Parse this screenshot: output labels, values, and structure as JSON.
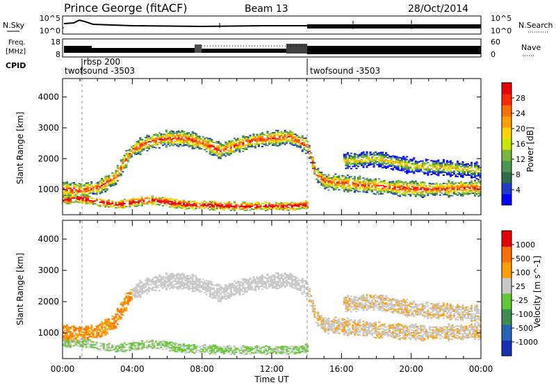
{
  "header": {
    "station": "Prince George (fitACF)",
    "beam": "Beam 13",
    "date": "28/Oct/2014"
  },
  "strips": {
    "nsky_label": "N.Sky",
    "nsearch_label": "N.Search",
    "freq_label_1": "Freq.",
    "freq_label_2": "[MHz]",
    "nave_label": "Nave",
    "cpid_label": "CPID",
    "nsky_ticks": [
      "10^5",
      "10^0"
    ],
    "freq_ticks": [
      "18",
      "8"
    ],
    "nave_ticks": [
      "60",
      "0"
    ],
    "cpid_entries": [
      {
        "time": 0.0,
        "label": "twofsound -3503",
        "marker": false
      },
      {
        "time": 1.15,
        "label": "rbsp 200",
        "marker": true
      },
      {
        "time": 14.1,
        "label": "twofsound -3503",
        "marker": true
      }
    ]
  },
  "axes": {
    "x_label": "Time UT",
    "x_ticks": [
      "00:00",
      "04:00",
      "08:00",
      "12:00",
      "16:00",
      "20:00",
      "00:00"
    ],
    "y_label": "Slant Range [km]",
    "y_ticks": [
      "1000",
      "2000",
      "3000",
      "4000"
    ]
  },
  "chart_data": [
    {
      "type": "heatmap",
      "title": "",
      "xlabel": "Time UT",
      "ylabel": "Slant Range [km]",
      "xlim": [
        0,
        24
      ],
      "ylim": [
        180,
        4600
      ],
      "colorbar": {
        "label": "Power [dB]",
        "ticks": [
          "28",
          "24",
          "20",
          "16",
          "12",
          "8",
          "4"
        ],
        "colors": [
          "#0000ff",
          "#1e3cc8",
          "#2d6e4b",
          "#4b9650",
          "#7db43c",
          "#c8e600",
          "#ffd200",
          "#ffa000",
          "#ff6e00",
          "#ff2800",
          "#e60000"
        ]
      },
      "echo_bands": [
        {
          "name": "main F-region",
          "points": [
            [
              0,
              1000
            ],
            [
              1,
              950
            ],
            [
              2,
              1050
            ],
            [
              3,
              1400
            ],
            [
              3.5,
              1900
            ],
            [
              4,
              2300
            ],
            [
              5,
              2550
            ],
            [
              6,
              2650
            ],
            [
              7,
              2650
            ],
            [
              8,
              2500
            ],
            [
              9,
              2250
            ],
            [
              10,
              2450
            ],
            [
              11,
              2600
            ],
            [
              12,
              2650
            ],
            [
              13,
              2700
            ],
            [
              14,
              2400
            ],
            [
              14.5,
              1500
            ],
            [
              15,
              1250
            ],
            [
              17,
              1150
            ],
            [
              19,
              1050
            ],
            [
              21,
              1000
            ],
            [
              24,
              1050
            ]
          ],
          "width_km": 220,
          "level": 0.45
        },
        {
          "name": "near-range",
          "points": [
            [
              0,
              650
            ],
            [
              1,
              700
            ],
            [
              2,
              600
            ],
            [
              3,
              500
            ],
            [
              5,
              650
            ],
            [
              7,
              500
            ],
            [
              10,
              450
            ],
            [
              13,
              450
            ],
            [
              14,
              500
            ]
          ],
          "width_km": 120,
          "level": 0.65
        },
        {
          "name": "secondary",
          "points": [
            [
              16,
              1900
            ],
            [
              18,
              2000
            ],
            [
              20,
              1750
            ],
            [
              22,
              1700
            ],
            [
              24,
              1600
            ]
          ],
          "width_km": 220,
          "level": 0.2
        }
      ]
    },
    {
      "type": "heatmap",
      "title": "",
      "xlabel": "Time UT",
      "ylabel": "Slant Range [km]",
      "xlim": [
        0,
        24
      ],
      "ylim": [
        180,
        4600
      ],
      "colorbar": {
        "label": "Velocity [m s^-1]",
        "ticks": [
          "1000",
          "500",
          "100",
          "25",
          "-25",
          "-100",
          "-500",
          "-1000"
        ],
        "colors": [
          "#1430b4",
          "#2864b4",
          "#3c8c50",
          "#64c832",
          "#c8c8c8",
          "#ffa000",
          "#ff6e00",
          "#e60000"
        ]
      }
    }
  ]
}
